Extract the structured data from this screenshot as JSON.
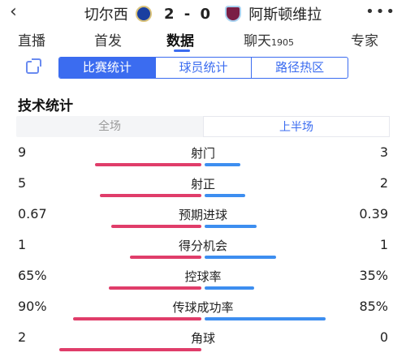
{
  "header": {
    "back_icon": "chevron-left-icon",
    "home_team": "切尔西",
    "away_team": "阿斯顿维拉",
    "score": "2 - 0",
    "more_icon": "more-dots-icon"
  },
  "tabs": [
    {
      "label": "直播"
    },
    {
      "label": "首发"
    },
    {
      "label": "数据",
      "active": true
    },
    {
      "label": "聊天",
      "suffix": "1905"
    },
    {
      "label": "专家"
    }
  ],
  "subtabs": {
    "icon": "copy-icon",
    "items": [
      {
        "label": "比赛统计",
        "active": true
      },
      {
        "label": "球员统计"
      },
      {
        "label": "路径热区"
      }
    ]
  },
  "section_title": "技术统计",
  "period": {
    "full": "全场",
    "first_half": "上半场",
    "selected": "上半场"
  },
  "colors": {
    "accent": "#3b6cf0",
    "home_bar": "#e03d6a",
    "away_bar": "#3d8ef0"
  },
  "stats": [
    {
      "label": "射门",
      "home": "9",
      "away": "3",
      "home_share": 0.75,
      "away_share": 0.25
    },
    {
      "label": "射正",
      "home": "5",
      "away": "2",
      "home_share": 0.714,
      "away_share": 0.286
    },
    {
      "label": "预期进球",
      "home": "0.67",
      "away": "0.39",
      "home_share": 0.632,
      "away_share": 0.368
    },
    {
      "label": "得分机会",
      "home": "1",
      "away": "1",
      "home_share": 0.5,
      "away_share": 0.5
    },
    {
      "label": "控球率",
      "home": "65%",
      "away": "35%",
      "home_share": 0.65,
      "away_share": 0.35
    },
    {
      "label": "传球成功率",
      "home": "90%",
      "away": "85%",
      "home_share": 0.9,
      "away_share": 0.85
    },
    {
      "label": "角球",
      "home": "2",
      "away": "0",
      "home_share": 1.0,
      "away_share": 0.0
    }
  ]
}
